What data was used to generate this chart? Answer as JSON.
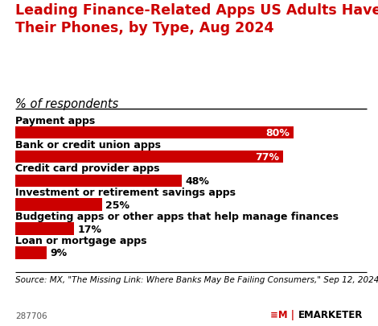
{
  "title": "Leading Finance-Related Apps US Adults Have on\nTheir Phones, by Type, Aug 2024",
  "subtitle": "% of respondents",
  "categories": [
    "Payment apps",
    "Bank or credit union apps",
    "Credit card provider apps",
    "Investment or retirement savings apps",
    "Budgeting apps or other apps that help manage finances",
    "Loan or mortgage apps"
  ],
  "values": [
    80,
    77,
    48,
    25,
    17,
    9
  ],
  "bar_color": "#CC0000",
  "label_color_inside": "#FFFFFF",
  "label_color_outside": "#000000",
  "inside_threshold": 50,
  "source_text": "Source: MX, \"The Missing Link: Where Banks May Be Failing Consumers,\" Sep 12, 2024",
  "footer_id": "287706",
  "title_color": "#CC0000",
  "subtitle_color": "#000000",
  "background_color": "#FFFFFF",
  "xlim": [
    0,
    100
  ],
  "bar_height": 0.52,
  "title_fontsize": 12.5,
  "subtitle_fontsize": 10.5,
  "category_fontsize": 9,
  "value_fontsize": 9,
  "source_fontsize": 7.5
}
